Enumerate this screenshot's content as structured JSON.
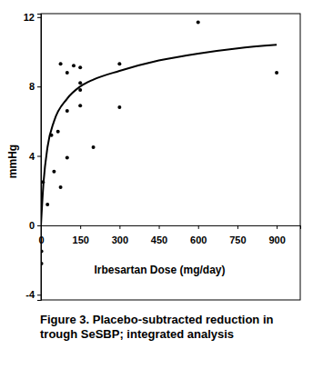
{
  "chart_data": {
    "type": "scatter",
    "title": "Figure 3.  Placebo-subtracted reduction in trough SeSBP; integrated analysis",
    "x_label": "Irbesartan Dose (mg/day)",
    "y_label": "mmHg",
    "xlim": [
      0,
      990
    ],
    "ylim": [
      -4.3,
      12.2
    ],
    "xticks": [
      0,
      150,
      300,
      450,
      600,
      750,
      900
    ],
    "yticks": [
      -4,
      0,
      4,
      8,
      12
    ],
    "grid": false,
    "series": [
      {
        "type": "scatter",
        "marker": "circle",
        "color": "#000000",
        "x": [
          2,
          2,
          8,
          25,
          40,
          50,
          65,
          75,
          75,
          100,
          100,
          100,
          125,
          150,
          150,
          150,
          150,
          200,
          300,
          300,
          600,
          900
        ],
        "values": [
          -1.5,
          -2.2,
          2.5,
          1.2,
          5.2,
          3.1,
          5.4,
          2.2,
          9.3,
          3.9,
          8.8,
          6.6,
          9.2,
          9.1,
          8.2,
          7.8,
          6.9,
          4.5,
          9.3,
          6.8,
          11.7,
          8.8
        ]
      },
      {
        "type": "line",
        "line_style": "solid",
        "color": "#000000",
        "x": [
          0,
          10,
          25,
          50,
          100,
          150,
          200,
          300,
          450,
          600,
          750,
          900
        ],
        "values": [
          0,
          2.5,
          4.5,
          6.0,
          7.3,
          8.0,
          8.4,
          8.9,
          9.5,
          9.9,
          10.2,
          10.4
        ]
      }
    ]
  }
}
